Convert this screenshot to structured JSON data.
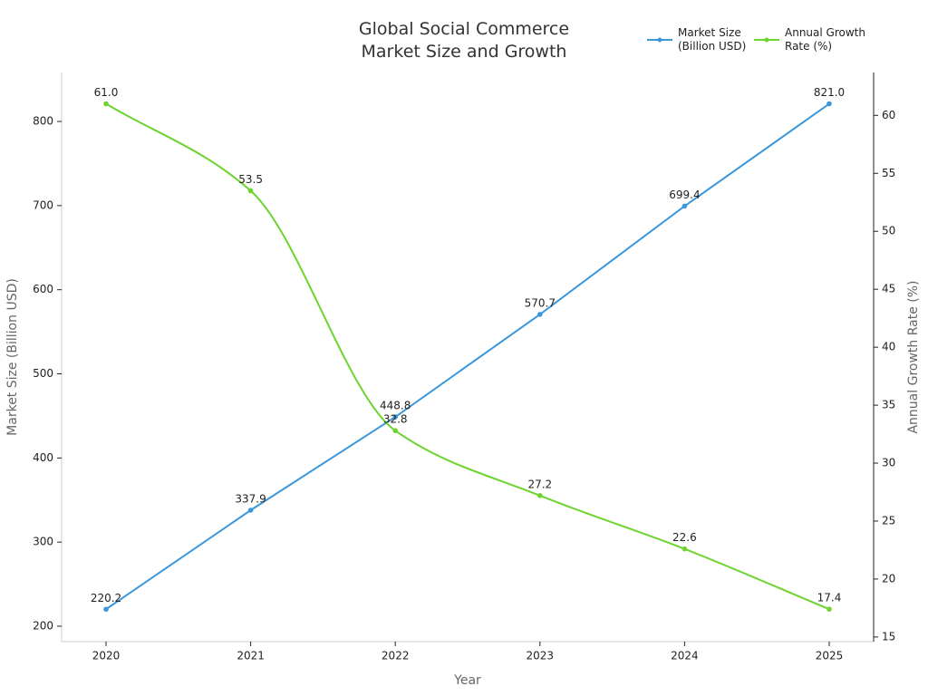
{
  "chart_data": {
    "type": "line",
    "title": "Global Social Commerce Market Size and Growth",
    "x_label": "Year",
    "y_label": "Market Size (Billion USD)",
    "y2_label": "Annual Growth Rate (%)",
    "categories": [
      "2020",
      "2021",
      "2022",
      "2023",
      "2024",
      "2025"
    ],
    "series": [
      {
        "name": "Market Size (Billion USD)",
        "color": "#3b97db",
        "smooth": false,
        "values": [
          220.2,
          337.9,
          448.8,
          570.7,
          699.4,
          821.0
        ],
        "value_labels": [
          "220.2",
          "337.9",
          "448.8",
          "570.7",
          "699.4",
          "821.0"
        ]
      },
      {
        "name": "Annual Growth Rate (%)",
        "color": "#6dd42f",
        "axis": "y2",
        "smooth": true,
        "values": [
          61.0,
          53.5,
          32.8,
          27.2,
          22.6,
          17.4
        ],
        "value_labels": [
          "61.0",
          "53.5",
          "32.8",
          "27.2",
          "22.6",
          "17.4"
        ]
      }
    ],
    "ylim": [
      181.7,
      858.2
    ],
    "yticks": [
      200,
      300,
      400,
      500,
      600,
      700,
      800
    ],
    "y2lim": [
      14.6,
      63.7
    ],
    "y2ticks": [
      15,
      20,
      25,
      30,
      35,
      40,
      45,
      50,
      55,
      60
    ],
    "grid": false,
    "legend": "top-right"
  }
}
